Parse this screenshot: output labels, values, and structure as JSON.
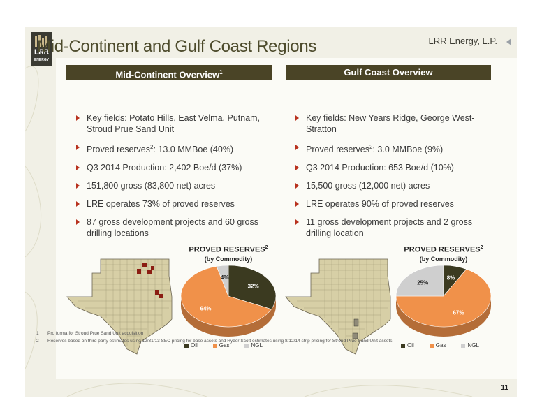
{
  "header": {
    "company": "LRR Energy, L.P.",
    "logo_text": "LRR",
    "logo_sub": "ENERGY"
  },
  "title": "Mid-Continent and Gulf Coast Regions",
  "left": {
    "heading": "Mid-Continent Overview",
    "heading_sup": "1",
    "bullets": [
      {
        "pre": "Key fields: Potato Hills, East Velma, Putnam, Stroud Prue Sand Unit"
      },
      {
        "pre": "Proved reserves",
        "sup": "2",
        "post": ": 13.0 MMBoe (40%)"
      },
      {
        "pre": "Q3 2014 Production: 2,402 Boe/d (37%)"
      },
      {
        "pre": "151,800 gross (83,800 net) acres"
      },
      {
        "pre": "LRE operates 73% of proved reserves"
      },
      {
        "pre": "87 gross development projects and 60 gross drilling locations"
      }
    ],
    "chart_title": "PROVED RESERVES",
    "chart_title_sup": "2",
    "chart_sub": "(by Commodity)"
  },
  "right": {
    "heading": "Gulf Coast Overview",
    "bullets": [
      {
        "pre": "Key fields: New Years Ridge, George West-Stratton"
      },
      {
        "pre": "Proved reserves",
        "sup": "2",
        "post": ": 3.0 MMBoe (9%)"
      },
      {
        "pre": "Q3 2014 Production: 653 Boe/d (10%)"
      },
      {
        "pre": "15,500 gross (12,000 net) acres"
      },
      {
        "pre": "LRE operates 90% of proved reserves"
      },
      {
        "pre": "11 gross development projects and 2 gross drilling location"
      }
    ],
    "chart_title": "PROVED RESERVES",
    "chart_title_sup": "2",
    "chart_sub": "(by Commodity)"
  },
  "chart_data": [
    {
      "type": "pie",
      "title": "PROVED RESERVES",
      "subtitle": "(by Commodity)",
      "categories": [
        "Oil",
        "Gas",
        "NGL"
      ],
      "values": [
        32,
        64,
        4
      ],
      "labels": [
        "32%",
        "64%",
        "4%"
      ],
      "colors": [
        "#3b3a20",
        "#f0914a",
        "#cfcfcf"
      ],
      "legend": "bottom"
    },
    {
      "type": "pie",
      "title": "PROVED RESERVES",
      "subtitle": "(by Commodity)",
      "categories": [
        "Oil",
        "Gas",
        "NGL"
      ],
      "values": [
        8,
        67,
        25
      ],
      "labels": [
        "8%",
        "67%",
        "25%"
      ],
      "colors": [
        "#3b3a20",
        "#f0914a",
        "#cfcfcf"
      ],
      "legend": "bottom"
    }
  ],
  "footnotes": [
    {
      "num": "1",
      "text": "Pro forma for Stroud Prue Sand Unit acquisition"
    },
    {
      "num": "2",
      "text": "Reserves based on third party estimates using 12/31/13 SEC pricing for base assets and Ryder Scott estimates using 8/12/14 strip pricing for Stroud Prue Sand Unit assets"
    }
  ],
  "page_number": "11",
  "colors": {
    "accent": "#4a4426",
    "bullet": "#b8321f",
    "oil": "#3b3a20",
    "gas": "#f0914a",
    "ngl": "#cfcfcf"
  }
}
